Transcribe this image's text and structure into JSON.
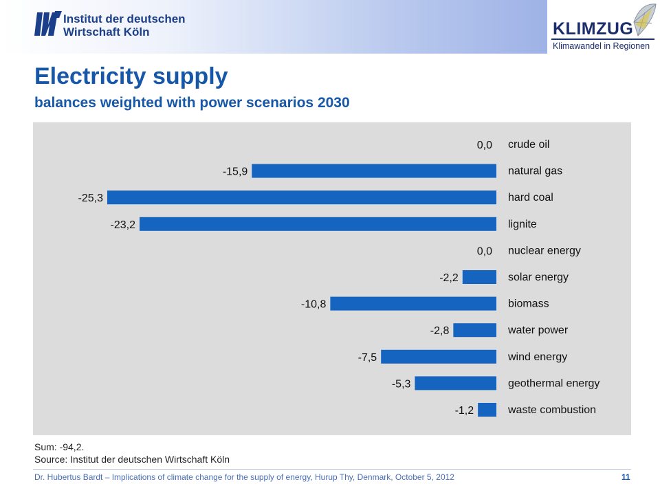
{
  "header": {
    "institute_line1": "Institut der deutschen",
    "institute_line2": "Wirtschaft Köln",
    "partner_name": "KLIMZUG",
    "partner_tagline": "Klimawandel in Regionen"
  },
  "slide": {
    "title": "Electricity supply",
    "subtitle": "balances weighted with power scenarios 2030",
    "sum_note": "Sum: -94,2.",
    "source_note": "Source: Institut der deutschen Wirtschaft Köln",
    "footer": "Dr. Hubertus Bardt – Implications of climate change for the supply of energy, Hurup Thy, Denmark, October 5, 2012",
    "page_number": "11"
  },
  "colors": {
    "bar": "#1565c0",
    "panel": "#dcdcdc",
    "title": "#1757a8"
  },
  "chart_data": {
    "type": "bar",
    "orientation": "horizontal",
    "categories": [
      "crude oil",
      "natural gas",
      "hard coal",
      "lignite",
      "nuclear energy",
      "solar energy",
      "biomass",
      "water power",
      "wind energy",
      "geothermal energy",
      "waste combustion"
    ],
    "values": [
      0.0,
      -15.9,
      -25.3,
      -23.2,
      0.0,
      -2.2,
      -10.8,
      -2.8,
      -7.5,
      -5.3,
      -1.2
    ],
    "value_labels": [
      "0,0",
      "-15,9",
      "-25,3",
      "-23,2",
      "0,0",
      "-2,2",
      "-10,8",
      "-2,8",
      "-7,5",
      "-5,3",
      "-1,2"
    ],
    "xlim": [
      -25.3,
      0
    ],
    "grid": false,
    "legend": "none"
  }
}
